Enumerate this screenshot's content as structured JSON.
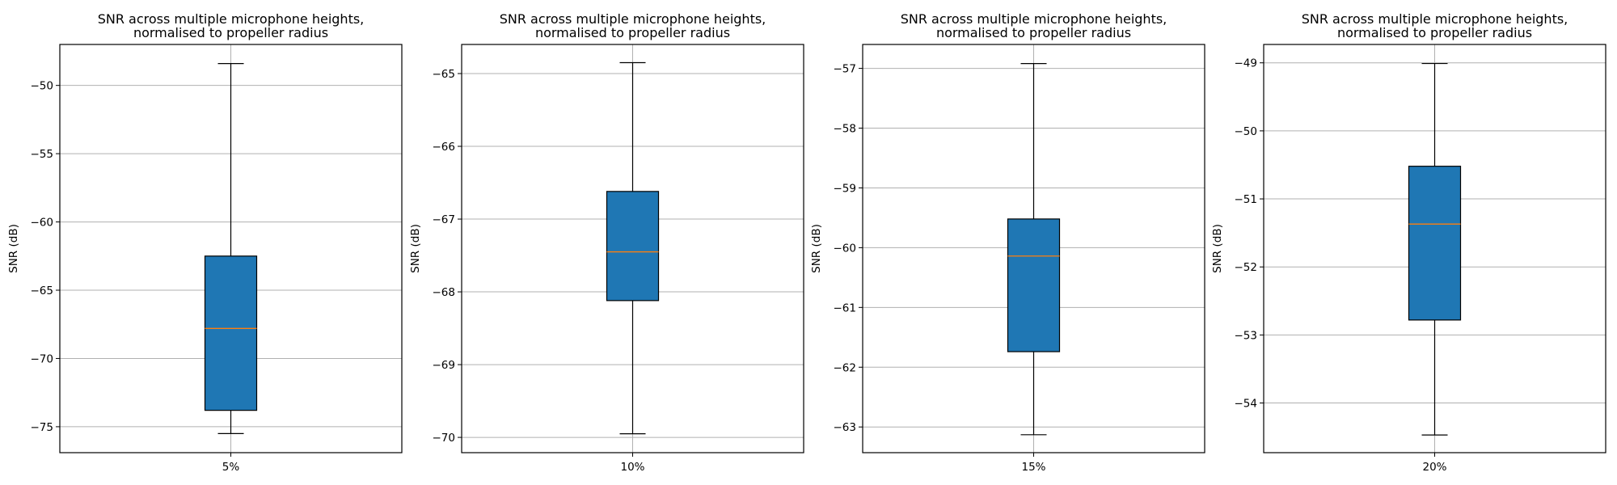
{
  "chart_data": [
    {
      "type": "box",
      "title": "SNR across multiple microphone heights,\nnormalised to propeller radius",
      "xlabel": "",
      "ylabel": "SNR (dB)",
      "categories": [
        "5%"
      ],
      "box": {
        "whisker_low": -75.5,
        "q1": -73.8,
        "median": -67.8,
        "q3": -62.5,
        "whisker_high": -48.4
      },
      "ylim": [
        -76.9,
        -47.0
      ],
      "yticks": [
        -75,
        -70,
        -65,
        -60,
        -55,
        -50
      ],
      "ytick_labels": [
        "−75",
        "−70",
        "−65",
        "−60",
        "−55",
        "−50"
      ],
      "grid": "y"
    },
    {
      "type": "box",
      "title": "SNR across multiple microphone heights,\nnormalised to propeller radius",
      "xlabel": "",
      "ylabel": "SNR (dB)",
      "categories": [
        "10%"
      ],
      "box": {
        "whisker_low": -69.95,
        "q1": -68.12,
        "median": -67.45,
        "q3": -66.62,
        "whisker_high": -64.85
      },
      "ylim": [
        -70.21,
        -64.6
      ],
      "yticks": [
        -70,
        -69,
        -68,
        -67,
        -66,
        -65
      ],
      "ytick_labels": [
        "−70",
        "−69",
        "−68",
        "−67",
        "−66",
        "−65"
      ],
      "grid": "y"
    },
    {
      "type": "box",
      "title": "SNR across multiple microphone heights,\nnormalised to propeller radius",
      "xlabel": "",
      "ylabel": "SNR (dB)",
      "categories": [
        "15%"
      ],
      "box": {
        "whisker_low": -63.13,
        "q1": -61.74,
        "median": -60.14,
        "q3": -59.52,
        "whisker_high": -56.92
      },
      "ylim": [
        -63.43,
        -56.6
      ],
      "yticks": [
        -63,
        -62,
        -61,
        -60,
        -59,
        -58,
        -57
      ],
      "ytick_labels": [
        "−63",
        "−62",
        "−61",
        "−60",
        "−59",
        "−58",
        "−57"
      ],
      "grid": "y"
    },
    {
      "type": "box",
      "title": "SNR across multiple microphone heights,\nnormalised to propeller radius",
      "xlabel": "",
      "ylabel": "SNR (dB)",
      "categories": [
        "20%"
      ],
      "box": {
        "whisker_low": -54.47,
        "q1": -52.78,
        "median": -51.37,
        "q3": -50.52,
        "whisker_high": -49.01
      },
      "ylim": [
        -54.73,
        -48.73
      ],
      "yticks": [
        -54,
        -53,
        -52,
        -51,
        -50,
        -49
      ],
      "ytick_labels": [
        "−54",
        "−53",
        "−52",
        "−51",
        "−50",
        "−49"
      ],
      "grid": "y"
    }
  ],
  "colors": {
    "box_fill": "#1f77b4",
    "median_line": "#ff7f0e",
    "grid": "#b0b0b0",
    "axes": "#000000"
  }
}
